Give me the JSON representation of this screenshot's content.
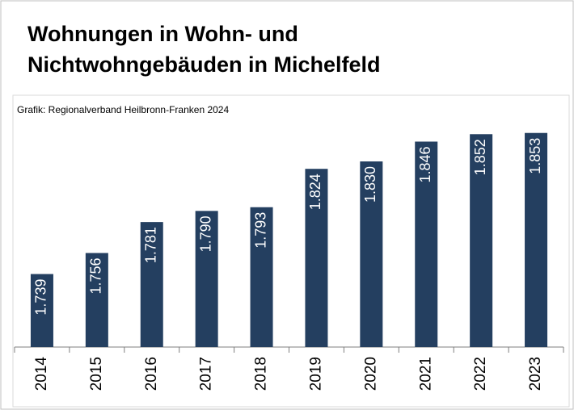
{
  "chart_data": {
    "type": "bar",
    "title": [
      "Wohnungen in Wohn- und",
      "Nichtwohngebäuden in Michelfeld"
    ],
    "source": "Grafik: Regionalverband Heilbronn-Franken 2024",
    "categories": [
      "2014",
      "2015",
      "2016",
      "2017",
      "2018",
      "2019",
      "2020",
      "2021",
      "2022",
      "2023"
    ],
    "values": [
      1739,
      1756,
      1781,
      1790,
      1793,
      1824,
      1830,
      1846,
      1852,
      1853
    ],
    "value_labels": [
      "1.739",
      "1.756",
      "1.781",
      "1.790",
      "1.793",
      "1.824",
      "1.830",
      "1.846",
      "1.852",
      "1.853"
    ],
    "color": "#243f60",
    "ylim": [
      1680,
      1860
    ]
  }
}
